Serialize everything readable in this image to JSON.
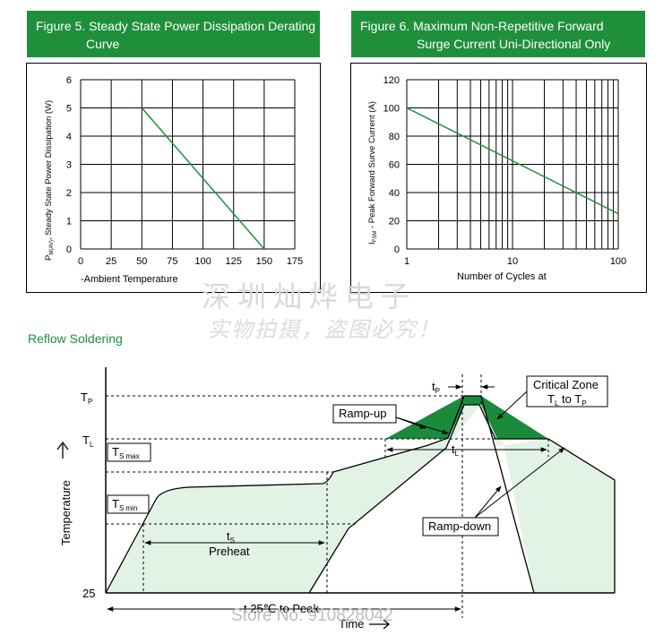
{
  "figure5": {
    "title_line1": "Figure 5. Steady State Power Dissipation Derating",
    "title_line2": "Curve",
    "chart_data": {
      "type": "line",
      "title": "Figure 5. Steady State Power Dissipation Derating Curve",
      "xlabel": "-Ambient Temperature",
      "ylabel": "P_M(AV), Steady State Power Dissipation (W)",
      "ylabel_main": "P",
      "ylabel_sub": "M(AV)",
      "ylabel_rest": ", Steady State Power Dissipation (W)",
      "xlim": [
        0,
        175
      ],
      "ylim": [
        0,
        6
      ],
      "x_ticks": [
        "0",
        "25",
        "50",
        "75",
        "100",
        "125",
        "150",
        "175"
      ],
      "y_ticks": [
        "0",
        "1",
        "2",
        "3",
        "4",
        "5",
        "6"
      ],
      "grid": true,
      "series": [
        {
          "x": [
            50,
            150
          ],
          "y": [
            5,
            0
          ]
        }
      ]
    }
  },
  "figure6": {
    "title_line1": "Figure 6. Maximum Non-Repetitive Forward",
    "title_line2": "Surge Current Uni-Directional Only",
    "chart_data": {
      "type": "line",
      "title": "Figure 6. Maximum Non-Repetitive Forward Surge Current Uni-Directional Only",
      "xlabel": "Number of Cycles at",
      "ylabel": "I_FSM - Peak Forward Surve Current (A)",
      "ylabel_main": "I",
      "ylabel_sub": "FSM",
      "ylabel_rest": " - Peak Forward Surve Current (A)",
      "x_scale": "log",
      "xlim": [
        1,
        100
      ],
      "ylim": [
        0,
        120
      ],
      "x_ticks": [
        "1",
        "10",
        "100"
      ],
      "y_ticks": [
        "0",
        "20",
        "40",
        "60",
        "80",
        "100",
        "120"
      ],
      "grid": true,
      "series": [
        {
          "x": [
            1,
            100
          ],
          "y": [
            100,
            25
          ]
        }
      ]
    }
  },
  "watermark": {
    "line1": "深圳灿烨电子",
    "line2": "实物拍摄，盗图必究！"
  },
  "reflow": {
    "title": "Reflow Soldering",
    "chart_data": {
      "type": "diagram",
      "labels": {
        "tp_main": "T",
        "tp_sub": "P",
        "tl_main": "T",
        "tl_sub": "L",
        "tsmax_main": "T",
        "tsmax_sub": "S max",
        "tsmin_main": "T",
        "tsmin_sub": "S min",
        "t25": "25",
        "ylabel": "Temperature",
        "tp_time_main": "t",
        "tp_time_sub": "P",
        "tl_time_main": "t",
        "tl_time_sub": "L",
        "ts_time_main": "t",
        "ts_time_sub": "S",
        "preheat": "Preheat",
        "ramp_up": "Ramp-up",
        "ramp_down": "Ramp-down",
        "critical_line1": "Critical Zone",
        "critical_l2_a": "T",
        "critical_l2_a_sub": "L",
        "critical_l2_mid": " to ",
        "critical_l2_b": "T",
        "critical_l2_b_sub": "P",
        "t25_to_peak": "t 25℃ to Peak",
        "time_label": "Time"
      }
    }
  },
  "store_label": "Store No: 910828042"
}
